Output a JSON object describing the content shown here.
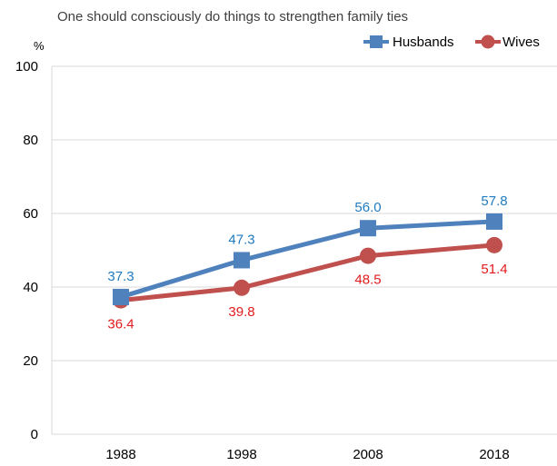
{
  "chart_data": {
    "type": "line",
    "title": "One should consciously do things to strengthen family ties",
    "ylabel": "%",
    "xlabel": "",
    "categories": [
      "1988",
      "1998",
      "2008",
      "2018"
    ],
    "ylim": [
      0,
      100
    ],
    "yticks": [
      0,
      20,
      40,
      60,
      80,
      100
    ],
    "grid": true,
    "legend_position": "top-right",
    "series": [
      {
        "name": "Husbands",
        "values": [
          37.3,
          47.3,
          56.0,
          57.8
        ],
        "labels": [
          "37.3",
          "47.3",
          "56.0",
          "57.8"
        ],
        "color": "#4f81bd",
        "label_color": "#1f7bc1",
        "marker": "square",
        "label_position": "above"
      },
      {
        "name": "Wives",
        "values": [
          36.4,
          39.8,
          48.5,
          51.4
        ],
        "labels": [
          "36.4",
          "39.8",
          "48.5",
          "51.4"
        ],
        "color": "#c0504d",
        "label_color": "#e31a1c",
        "marker": "circle",
        "label_position": "below"
      }
    ]
  }
}
